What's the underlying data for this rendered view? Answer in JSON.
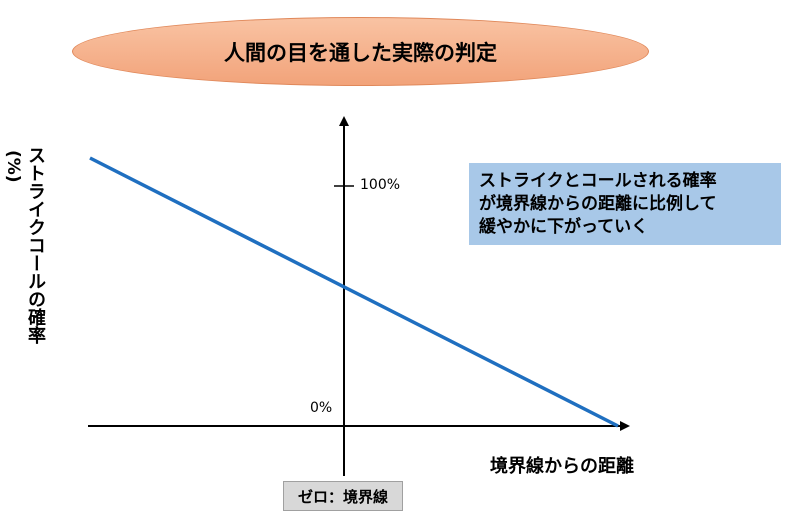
{
  "title": "人間の目を通した実際の判定",
  "y_axis": {
    "label": "ストライクコールの確率",
    "unit": "(%)",
    "ticks": {
      "top": "100%",
      "bottom": "0%"
    }
  },
  "x_axis": {
    "label": "境界線からの距離",
    "origin_label": "ゼロ：境界線"
  },
  "annotation": {
    "lines": [
      "ストライクとコールされる確率",
      "が境界線からの距離に比例して",
      "緩やかに下がっていく"
    ]
  },
  "colors": {
    "title_fill": "#f4ad85",
    "line": "#1f6fc0",
    "annotation_fill": "#a8c8e8",
    "origin_box_fill": "#d8d8d8"
  },
  "line_data": {
    "description_kind": "straight declining line",
    "start_probability_pct": 125,
    "probability_at_boundary_pct": 59,
    "end_probability_pct": 0
  }
}
